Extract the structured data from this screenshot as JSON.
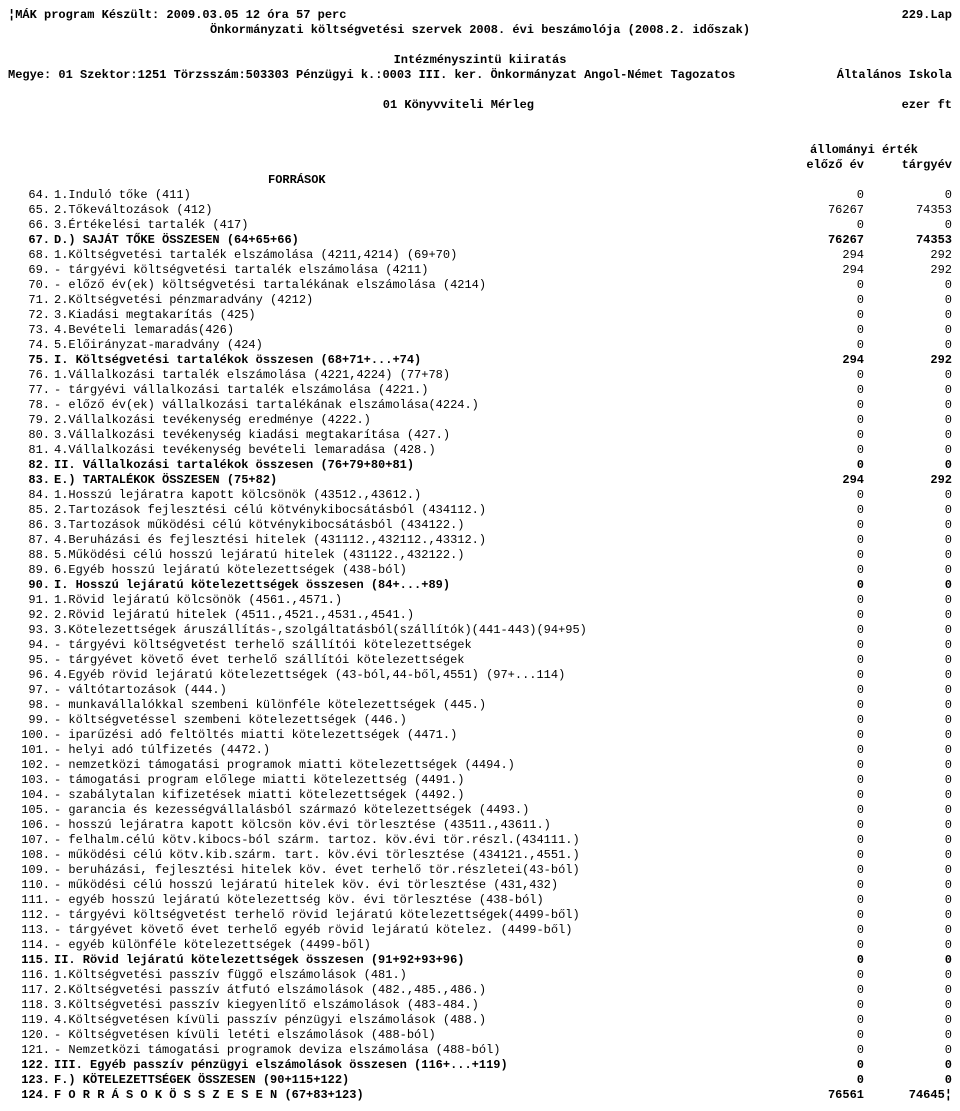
{
  "header": {
    "line1_left": "¦MÁK program Készült: 2009.03.05  12 óra 57 perc",
    "line1_right": "229.Lap",
    "line2": "Önkormányzati költségvetési szervek 2008. évi beszámolója (2008.2. időszak)",
    "line3": "Intézményszintü kiiratás",
    "line4_left": "Megye: 01  Szektor:1251  Törzsszám:503303 Pénzügyi k.:0003  III. ker. Önkormányzat Angol-Német Tagozatos",
    "line4_right": "Általános Iskola",
    "line5_center": "01   Könyvviteli Mérleg",
    "line5_right": "ezer ft",
    "col_header_top": "állományi érték",
    "col_header_prev": "előző év",
    "col_header_curr": "tárgyév",
    "forrasok": "FORRÁSOK"
  },
  "rows": [
    {
      "n": "64.",
      "l": "1.Induló tőke (411)",
      "a": "0",
      "b": "0",
      "bold": false
    },
    {
      "n": "65.",
      "l": "2.Tőkeváltozások (412)",
      "a": "76267",
      "b": "74353",
      "bold": false
    },
    {
      "n": "66.",
      "l": "3.Értékelési tartalék (417)",
      "a": "0",
      "b": "0",
      "bold": false
    },
    {
      "n": "67.",
      "l": "D.) SAJÁT TŐKE ÖSSZESEN  (64+65+66)",
      "a": "76267",
      "b": "74353",
      "bold": true
    },
    {
      "n": "68.",
      "l": "1.Költségvetési tartalék elszámolása (4211,4214) (69+70)",
      "a": "294",
      "b": "292",
      "bold": false
    },
    {
      "n": "69.",
      "l": "  - tárgyévi költségvetési tartalék elszámolása (4211)",
      "a": "294",
      "b": "292",
      "bold": false
    },
    {
      "n": "70.",
      "l": "  - előző év(ek) költségvetési tartalékának elszámolása (4214)",
      "a": "0",
      "b": "0",
      "bold": false
    },
    {
      "n": "71.",
      "l": "2.Költségvetési pénzmaradvány (4212)",
      "a": "0",
      "b": "0",
      "bold": false
    },
    {
      "n": "72.",
      "l": "3.Kiadási megtakarítás (425)",
      "a": "0",
      "b": "0",
      "bold": false
    },
    {
      "n": "73.",
      "l": "4.Bevételi lemaradás(426)",
      "a": "0",
      "b": "0",
      "bold": false
    },
    {
      "n": "74.",
      "l": "5.Előirányzat-maradvány (424)",
      "a": "0",
      "b": "0",
      "bold": false
    },
    {
      "n": "75.",
      "l": "I. Költségvetési tartalékok összesen (68+71+...+74)",
      "a": "294",
      "b": "292",
      "bold": true
    },
    {
      "n": "76.",
      "l": "1.Vállalkozási tartalék elszámolása (4221,4224) (77+78)",
      "a": "0",
      "b": "0",
      "bold": false
    },
    {
      "n": "77.",
      "l": "  - tárgyévi vállalkozási tartalék elszámolása (4221.)",
      "a": "0",
      "b": "0",
      "bold": false
    },
    {
      "n": "78.",
      "l": "  - előző év(ek) vállalkozási tartalékának elszámolása(4224.)",
      "a": "0",
      "b": "0",
      "bold": false
    },
    {
      "n": "79.",
      "l": "2.Vállalkozási tevékenység eredménye (4222.)",
      "a": "0",
      "b": "0",
      "bold": false
    },
    {
      "n": "80.",
      "l": "3.Vállalkozási tevékenység kiadási megtakarítása (427.)",
      "a": "0",
      "b": "0",
      "bold": false
    },
    {
      "n": "81.",
      "l": "4.Vállalkozási tevékenység bevételi lemaradása (428.)",
      "a": "0",
      "b": "0",
      "bold": false
    },
    {
      "n": "82.",
      "l": "II. Vállalkozási tartalékok összesen (76+79+80+81)",
      "a": "0",
      "b": "0",
      "bold": true
    },
    {
      "n": "83.",
      "l": "E.) TARTALÉKOK ÖSSZESEN  (75+82)",
      "a": "294",
      "b": "292",
      "bold": true
    },
    {
      "n": "84.",
      "l": "1.Hosszú lejáratra kapott kölcsönök (43512.,43612.)",
      "a": "0",
      "b": "0",
      "bold": false
    },
    {
      "n": "85.",
      "l": "2.Tartozások fejlesztési célú kötvénykibocsátásból (434112.)",
      "a": "0",
      "b": "0",
      "bold": false
    },
    {
      "n": "86.",
      "l": "3.Tartozások működési célú kötvénykibocsátásból (434122.)",
      "a": "0",
      "b": "0",
      "bold": false
    },
    {
      "n": "87.",
      "l": "4.Beruházási és fejlesztési hitelek (431112.,432112.,43312.)",
      "a": "0",
      "b": "0",
      "bold": false
    },
    {
      "n": "88.",
      "l": "5.Működési célú hosszú lejáratú hitelek (431122.,432122.)",
      "a": "0",
      "b": "0",
      "bold": false
    },
    {
      "n": "89.",
      "l": "6.Egyéb hosszú lejáratú kötelezettségek (438-ból)",
      "a": "0",
      "b": "0",
      "bold": false
    },
    {
      "n": "90.",
      "l": "I. Hosszú lejáratú kötelezettségek összesen (84+...+89)",
      "a": "0",
      "b": "0",
      "bold": true
    },
    {
      "n": "91.",
      "l": "1.Rövid lejáratú kölcsönök (4561.,4571.)",
      "a": "0",
      "b": "0",
      "bold": false
    },
    {
      "n": "92.",
      "l": "2.Rövid lejáratú hitelek (4511.,4521.,4531.,4541.)",
      "a": "0",
      "b": "0",
      "bold": false
    },
    {
      "n": "93.",
      "l": "3.Kötelezettségek áruszállítás-,szolgáltatásból(szállítók)(441-443)(94+95)",
      "a": "0",
      "b": "0",
      "bold": false
    },
    {
      "n": "94.",
      "l": "  - tárgyévi költségvetést terhelő szállítói kötelezettségek",
      "a": "0",
      "b": "0",
      "bold": false
    },
    {
      "n": "95.",
      "l": "  - tárgyévet követő évet terhelő szállítói kötelezettségek",
      "a": "0",
      "b": "0",
      "bold": false
    },
    {
      "n": "96.",
      "l": "4.Egyéb rövid lejáratú kötelezettségek (43-ból,44-ből,4551) (97+...114)",
      "a": "0",
      "b": "0",
      "bold": false
    },
    {
      "n": "97.",
      "l": "  - váltótartozások (444.)",
      "a": "0",
      "b": "0",
      "bold": false
    },
    {
      "n": "98.",
      "l": "  - munkavállalókkal szembeni különféle kötelezettségek (445.)",
      "a": "0",
      "b": "0",
      "bold": false
    },
    {
      "n": "99.",
      "l": "  - költségvetéssel szembeni kötelezettségek (446.)",
      "a": "0",
      "b": "0",
      "bold": false
    },
    {
      "n": "100.",
      "l": "  - iparűzési adó feltöltés miatti kötelezettségek (4471.)",
      "a": "0",
      "b": "0",
      "bold": false
    },
    {
      "n": "101.",
      "l": "  - helyi adó túlfizetés (4472.)",
      "a": "0",
      "b": "0",
      "bold": false
    },
    {
      "n": "102.",
      "l": "  - nemzetközi támogatási programok miatti kötelezettségek (4494.)",
      "a": "0",
      "b": "0",
      "bold": false
    },
    {
      "n": "103.",
      "l": "  - támogatási program előlege miatti kötelezettség (4491.)",
      "a": "0",
      "b": "0",
      "bold": false
    },
    {
      "n": "104.",
      "l": "  - szabálytalan kifizetések miatti kötelezettségek (4492.)",
      "a": "0",
      "b": "0",
      "bold": false
    },
    {
      "n": "105.",
      "l": "  - garancia és kezességvállalásból származó kötelezettségek (4493.)",
      "a": "0",
      "b": "0",
      "bold": false
    },
    {
      "n": "106.",
      "l": "  - hosszú lejáratra kapott kölcsön köv.évi törlesztése (43511.,43611.)",
      "a": "0",
      "b": "0",
      "bold": false
    },
    {
      "n": "107.",
      "l": "  - felhalm.célú kötv.kibocs-ból szárm. tartoz. köv.évi tör.részl.(434111.)",
      "a": "0",
      "b": "0",
      "bold": false
    },
    {
      "n": "108.",
      "l": "  - működési célú kötv.kib.szárm. tart. köv.évi törlesztése (434121.,4551.)",
      "a": "0",
      "b": "0",
      "bold": false
    },
    {
      "n": "109.",
      "l": "  - beruházási, fejlesztési hitelek köv. évet terhelő tör.részletei(43-ból)",
      "a": "0",
      "b": "0",
      "bold": false
    },
    {
      "n": "110.",
      "l": "  - működési célú hosszú lejáratú hitelek köv. évi törlesztése (431,432)",
      "a": "0",
      "b": "0",
      "bold": false
    },
    {
      "n": "111.",
      "l": "  - egyéb hosszú lejáratú kötelezettség köv. évi törlesztése (438-ból)",
      "a": "0",
      "b": "0",
      "bold": false
    },
    {
      "n": "112.",
      "l": "  - tárgyévi költségvetést terhelő rövid lejáratú kötelezettségek(4499-ből)",
      "a": "0",
      "b": "0",
      "bold": false
    },
    {
      "n": "113.",
      "l": "  - tárgyévet követő évet terhelő egyéb rövid lejáratú kötelez. (4499-ből)",
      "a": "0",
      "b": "0",
      "bold": false
    },
    {
      "n": "114.",
      "l": "  - egyéb különféle kötelezettségek (4499-ből)",
      "a": "0",
      "b": "0",
      "bold": false
    },
    {
      "n": "115.",
      "l": "II. Rövid lejáratú kötelezettségek összesen (91+92+93+96)",
      "a": "0",
      "b": "0",
      "bold": true
    },
    {
      "n": "116.",
      "l": "1.Költségvetési passzív függő elszámolások (481.)",
      "a": "0",
      "b": "0",
      "bold": false
    },
    {
      "n": "117.",
      "l": "2.Költségvetési passzív átfutó elszámolások (482.,485.,486.)",
      "a": "0",
      "b": "0",
      "bold": false
    },
    {
      "n": "118.",
      "l": "3.Költségvetési passzív kiegyenlítő elszámolások (483-484.)",
      "a": "0",
      "b": "0",
      "bold": false
    },
    {
      "n": "119.",
      "l": "4.Költségvetésen kívüli passzív pénzügyi elszámolások (488.)",
      "a": "0",
      "b": "0",
      "bold": false
    },
    {
      "n": "120.",
      "l": "  - Költségvetésen kívüli letéti elszámolások (488-ból)",
      "a": "0",
      "b": "0",
      "bold": false
    },
    {
      "n": "121.",
      "l": "  - Nemzetközi támogatási programok deviza elszámolása (488-ból)",
      "a": "0",
      "b": "0",
      "bold": false
    },
    {
      "n": "122.",
      "l": "III. Egyéb passzív pénzügyi elszámolások összesen (116+...+119)",
      "a": "0",
      "b": "0",
      "bold": true
    },
    {
      "n": "123.",
      "l": "F.) KÖTELEZETTSÉGEK ÖSSZESEN  (90+115+122)",
      "a": "0",
      "b": "0",
      "bold": true
    },
    {
      "n": "124.",
      "l": "F O R R Á S O K    Ö S S Z E S E N    (67+83+123)",
      "a": "76561",
      "b": "74645¦",
      "bold": true
    }
  ]
}
